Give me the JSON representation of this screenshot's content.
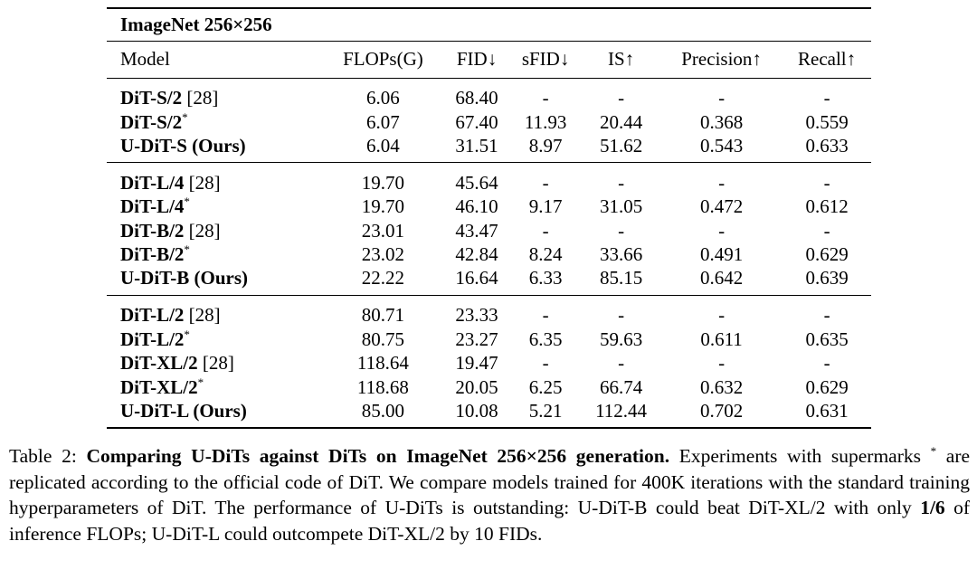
{
  "table": {
    "title": "ImageNet 256×256",
    "columns": [
      "Model",
      "FLOPs(G)",
      "FID↓",
      "sFID↓",
      "IS↑",
      "Precision↑",
      "Recall↑"
    ],
    "groups": [
      {
        "rows": [
          {
            "model": "DiT-S/2",
            "ref": " [28]",
            "star": "",
            "values": [
              "6.06",
              "68.40",
              "-",
              "-",
              "-",
              "-"
            ],
            "bold": [
              false,
              false,
              false,
              false,
              false,
              false
            ],
            "model_bold": true
          },
          {
            "model": "DiT-S/2",
            "ref": "",
            "star": "*",
            "values": [
              "6.07",
              "67.40",
              "11.93",
              "20.44",
              "0.368",
              "0.559"
            ],
            "bold": [
              false,
              false,
              false,
              false,
              false,
              false
            ],
            "model_bold": true
          },
          {
            "model": "U-DiT-S (Ours)",
            "ref": "",
            "star": "",
            "values": [
              "6.04",
              "31.51",
              "8.97",
              "51.62",
              "0.543",
              "0.633"
            ],
            "bold": [
              false,
              true,
              true,
              true,
              true,
              true
            ],
            "model_bold": true
          }
        ]
      },
      {
        "rows": [
          {
            "model": "DiT-L/4",
            "ref": " [28]",
            "star": "",
            "values": [
              "19.70",
              "45.64",
              "-",
              "-",
              "-",
              "-"
            ],
            "bold": [
              false,
              false,
              false,
              false,
              false,
              false
            ],
            "model_bold": true
          },
          {
            "model": "DiT-L/4",
            "ref": "",
            "star": "*",
            "values": [
              "19.70",
              "46.10",
              "9.17",
              "31.05",
              "0.472",
              "0.612"
            ],
            "bold": [
              false,
              false,
              false,
              false,
              false,
              false
            ],
            "model_bold": true
          },
          {
            "model": "DiT-B/2",
            "ref": " [28]",
            "star": "",
            "values": [
              "23.01",
              "43.47",
              "-",
              "-",
              "-",
              "-"
            ],
            "bold": [
              false,
              false,
              false,
              false,
              false,
              false
            ],
            "model_bold": true
          },
          {
            "model": "DiT-B/2",
            "ref": "",
            "star": "*",
            "values": [
              "23.02",
              "42.84",
              "8.24",
              "33.66",
              "0.491",
              "0.629"
            ],
            "bold": [
              false,
              false,
              false,
              false,
              false,
              false
            ],
            "model_bold": true
          },
          {
            "model": "U-DiT-B (Ours)",
            "ref": "",
            "star": "",
            "values": [
              "22.22",
              "16.64",
              "6.33",
              "85.15",
              "0.642",
              "0.639"
            ],
            "bold": [
              false,
              true,
              true,
              true,
              true,
              true
            ],
            "model_bold": true
          }
        ]
      },
      {
        "rows": [
          {
            "model": "DiT-L/2",
            "ref": " [28]",
            "star": "",
            "values": [
              "80.71",
              "23.33",
              "-",
              "-",
              "-",
              "-"
            ],
            "bold": [
              false,
              false,
              false,
              false,
              false,
              false
            ],
            "model_bold": true
          },
          {
            "model": "DiT-L/2",
            "ref": "",
            "star": "*",
            "values": [
              "80.75",
              "23.27",
              "6.35",
              "59.63",
              "0.611",
              "0.635"
            ],
            "bold": [
              false,
              false,
              false,
              false,
              false,
              true
            ],
            "model_bold": true
          },
          {
            "model": "DiT-XL/2",
            "ref": " [28]",
            "star": "",
            "values": [
              "118.64",
              "19.47",
              "-",
              "-",
              "-",
              "-"
            ],
            "bold": [
              false,
              false,
              false,
              false,
              false,
              false
            ],
            "model_bold": true
          },
          {
            "model": "DiT-XL/2",
            "ref": "",
            "star": "*",
            "values": [
              "118.68",
              "20.05",
              "6.25",
              "66.74",
              "0.632",
              "0.629"
            ],
            "bold": [
              false,
              false,
              false,
              false,
              false,
              false
            ],
            "model_bold": true
          },
          {
            "model": "U-DiT-L (Ours)",
            "ref": "",
            "star": "",
            "values": [
              "85.00",
              "10.08",
              "5.21",
              "112.44",
              "0.702",
              "0.631"
            ],
            "bold": [
              false,
              true,
              true,
              true,
              true,
              false
            ],
            "model_bold": true
          }
        ]
      }
    ]
  },
  "caption": {
    "label": "Table 2:",
    "bold_title": "Comparing U-DiTs against DiTs on ImageNet 256×256 generation.",
    "text_1": "Experiments with supermarks",
    "star": "*",
    "text_2": "are replicated according to the official code of DiT. We compare models trained for 400K iterations with the standard training hyperparameters of DiT. The performance of U-DiTs is outstanding: U-DiT-B could beat DiT-XL/2 with only",
    "bold_fraction": "1/6",
    "text_3": "of inference FLOPs; U-DiT-L could outcompete DiT-XL/2 by 10 FIDs."
  }
}
